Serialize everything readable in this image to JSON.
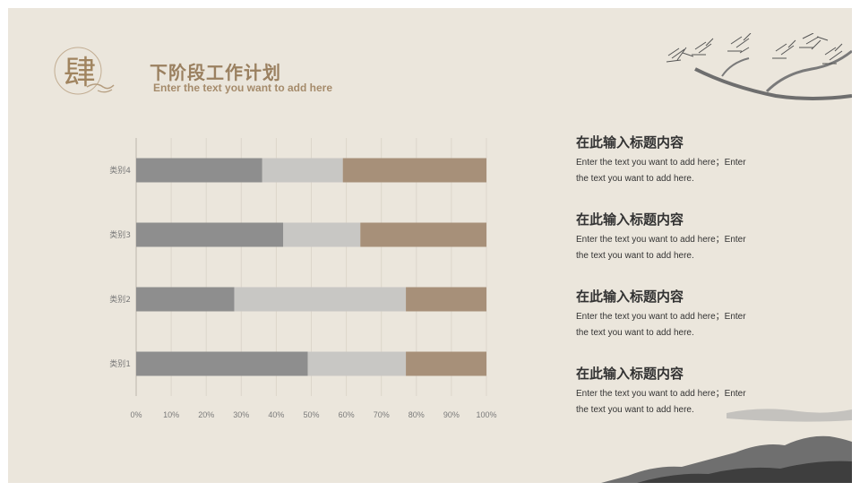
{
  "header": {
    "emblem_char": "肆",
    "title": "下阶段工作计划",
    "subtitle": "Enter the text you want to add here"
  },
  "chart_data": {
    "type": "bar",
    "orientation": "horizontal",
    "stacked": "percent",
    "categories": [
      "类别1",
      "类别2",
      "类别3",
      "类别4"
    ],
    "series": [
      {
        "values": [
          49,
          28,
          42,
          36
        ],
        "color": "#8e8e8e"
      },
      {
        "values": [
          28,
          49,
          22,
          23
        ],
        "color": "#c8c7c4"
      },
      {
        "values": [
          23,
          23,
          36,
          41
        ],
        "color": "#a79079"
      }
    ],
    "xlim": [
      0,
      100
    ],
    "x_ticks": [
      "0%",
      "10%",
      "20%",
      "30%",
      "40%",
      "50%",
      "60%",
      "70%",
      "80%",
      "90%",
      "100%"
    ],
    "grid": true,
    "legend": "none"
  },
  "items": [
    {
      "title": "在此输入标题内容",
      "desc1": "Enter the text you want to add here；Enter",
      "desc2": "the text you want to add here."
    },
    {
      "title": "在此输入标题内容",
      "desc1": "Enter the text you want to add here；Enter",
      "desc2": "the text you want to add here."
    },
    {
      "title": "在此输入标题内容",
      "desc1": "Enter the text you want to add here；Enter",
      "desc2": "the text you want to add here."
    },
    {
      "title": "在此输入标题内容",
      "desc1": "Enter the text you want to add here；Enter",
      "desc2": "the text you want to add here."
    }
  ]
}
